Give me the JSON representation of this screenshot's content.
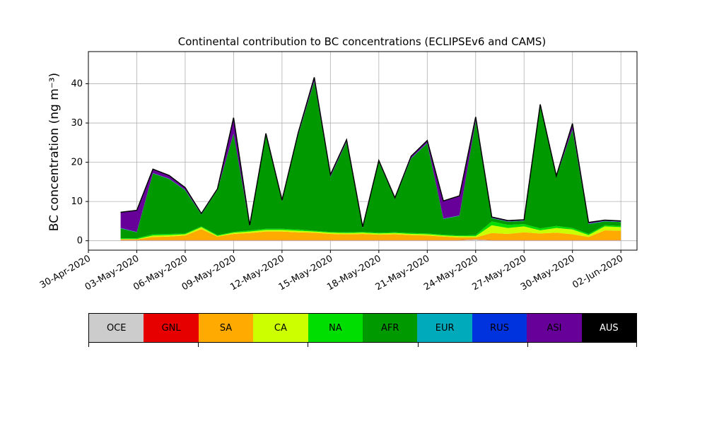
{
  "chart_data": {
    "type": "area",
    "stacked": true,
    "title": "Continental contribution to BC concentrations (ECLIPSEv6 and CAMS)",
    "ylabel": "BC concentration (ng m⁻³)",
    "xlabel": "",
    "ylim": [
      -2.4,
      48.2
    ],
    "xlim": [
      "2020-04-30",
      "2020-06-03"
    ],
    "grid": true,
    "x_tick_labels": [
      "30-Apr-2020",
      "03-May-2020",
      "06-May-2020",
      "09-May-2020",
      "12-May-2020",
      "15-May-2020",
      "18-May-2020",
      "21-May-2020",
      "24-May-2020",
      "27-May-2020",
      "30-May-2020",
      "02-Jun-2020"
    ],
    "y_ticks": [
      0,
      10,
      20,
      30,
      40
    ],
    "x": [
      "2020-05-02",
      "2020-05-03",
      "2020-05-04",
      "2020-05-05",
      "2020-05-06",
      "2020-05-07",
      "2020-05-08",
      "2020-05-09",
      "2020-05-10",
      "2020-05-11",
      "2020-05-12",
      "2020-05-13",
      "2020-05-14",
      "2020-05-15",
      "2020-05-16",
      "2020-05-17",
      "2020-05-18",
      "2020-05-19",
      "2020-05-20",
      "2020-05-21",
      "2020-05-22",
      "2020-05-23",
      "2020-05-24",
      "2020-05-25",
      "2020-05-26",
      "2020-05-27",
      "2020-05-28",
      "2020-05-29",
      "2020-05-30",
      "2020-05-31",
      "2020-06-01",
      "2020-06-02"
    ],
    "series": [
      {
        "name": "OCE",
        "color": "#cccccc",
        "values": [
          0.1,
          0.1,
          0.1,
          0.1,
          0.1,
          0.1,
          0.1,
          0.1,
          0.1,
          0.1,
          0.1,
          0.1,
          0.1,
          0.1,
          0.1,
          0.1,
          0.1,
          0.1,
          0.1,
          0.1,
          0.1,
          0.1,
          0.3,
          0.1,
          0.1,
          0.1,
          0.1,
          0.1,
          0.1,
          0.1,
          0.1,
          0.1
        ]
      },
      {
        "name": "GNL",
        "color": "#e60000",
        "values": [
          0.05,
          0.05,
          0.05,
          0.05,
          0.05,
          0.05,
          0.05,
          0.05,
          0.05,
          0.05,
          0.05,
          0.05,
          0.05,
          0.05,
          0.05,
          0.05,
          0.05,
          0.05,
          0.05,
          0.05,
          0.05,
          0.05,
          0.05,
          0.05,
          0.05,
          0.05,
          0.05,
          0.05,
          0.05,
          0.05,
          0.05,
          0.05
        ]
      },
      {
        "name": "SA",
        "color": "#ffaa00",
        "values": [
          0.2,
          0.2,
          0.8,
          0.9,
          1.2,
          2.8,
          0.9,
          1.6,
          1.8,
          2.2,
          2.2,
          2.0,
          1.9,
          1.6,
          1.5,
          1.6,
          1.4,
          1.5,
          1.3,
          1.2,
          0.9,
          0.7,
          0.5,
          1.8,
          1.6,
          2.0,
          1.7,
          1.9,
          1.5,
          0.8,
          2.5,
          2.4
        ]
      },
      {
        "name": "CA",
        "color": "#ccff00",
        "values": [
          0.1,
          0.1,
          0.4,
          0.4,
          0.3,
          0.5,
          0.2,
          0.3,
          0.4,
          0.4,
          0.4,
          0.4,
          0.3,
          0.3,
          0.3,
          0.3,
          0.3,
          0.3,
          0.3,
          0.3,
          0.3,
          0.3,
          0.3,
          2.0,
          1.5,
          1.5,
          0.8,
          1.2,
          1.2,
          0.5,
          1.0,
          0.9
        ]
      },
      {
        "name": "NA",
        "color": "#00dd00",
        "values": [
          0.2,
          0.2,
          0.3,
          0.3,
          0.2,
          0.2,
          0.2,
          0.2,
          0.3,
          0.3,
          0.3,
          0.3,
          0.2,
          0.2,
          0.2,
          0.2,
          0.2,
          0.2,
          0.2,
          0.2,
          0.2,
          0.2,
          0.3,
          1.0,
          0.8,
          0.6,
          0.5,
          0.5,
          0.4,
          0.3,
          0.3,
          0.3
        ]
      },
      {
        "name": "AFR",
        "color": "#009900",
        "values": [
          2.5,
          1.5,
          15.5,
          14.0,
          11.0,
          3.0,
          11.5,
          25.0,
          1.0,
          24.0,
          7.0,
          24.0,
          38.0,
          14.0,
          23.0,
          1.0,
          18.0,
          8.5,
          19.0,
          23.0,
          4.0,
          5.0,
          29.0,
          0.8,
          0.8,
          0.8,
          31.0,
          12.5,
          25.0,
          2.5,
          1.0,
          1.0
        ]
      },
      {
        "name": "EUR",
        "color": "#00aabb",
        "values": [
          0.05,
          0.05,
          0.05,
          0.05,
          0.05,
          0.05,
          0.05,
          0.05,
          0.05,
          0.05,
          0.05,
          0.05,
          0.05,
          0.05,
          0.05,
          0.05,
          0.05,
          0.05,
          0.05,
          0.05,
          0.05,
          0.05,
          0.05,
          0.05,
          0.05,
          0.05,
          0.05,
          0.05,
          0.05,
          0.05,
          0.05,
          0.05
        ]
      },
      {
        "name": "RUS",
        "color": "#0033dd",
        "values": [
          0.05,
          0.05,
          0.05,
          0.05,
          0.05,
          0.05,
          0.05,
          0.05,
          0.05,
          0.05,
          0.05,
          0.05,
          0.05,
          0.05,
          0.05,
          0.05,
          0.05,
          0.05,
          0.05,
          0.05,
          0.05,
          0.05,
          0.05,
          0.05,
          0.05,
          0.05,
          0.05,
          0.05,
          0.05,
          0.05,
          0.05,
          0.05
        ]
      },
      {
        "name": "ASI",
        "color": "#660099",
        "values": [
          4.0,
          5.5,
          1.0,
          0.8,
          0.6,
          0.2,
          0.2,
          4.0,
          0.2,
          0.2,
          0.2,
          0.5,
          1.0,
          0.5,
          0.5,
          0.2,
          0.3,
          0.2,
          0.5,
          0.6,
          4.5,
          5.0,
          1.0,
          0.2,
          0.2,
          0.2,
          0.5,
          0.2,
          1.5,
          0.3,
          0.2,
          0.2
        ]
      },
      {
        "name": "AUS",
        "color": "#000000",
        "values": [
          0.0,
          0.0,
          0.0,
          0.0,
          0.0,
          0.0,
          0.0,
          0.0,
          0.0,
          0.0,
          0.0,
          0.0,
          0.0,
          0.0,
          0.0,
          0.0,
          0.0,
          0.0,
          0.0,
          0.0,
          0.0,
          0.0,
          0.0,
          0.0,
          0.0,
          0.0,
          0.0,
          0.0,
          0.0,
          0.0,
          0.0,
          0.0
        ]
      }
    ]
  }
}
